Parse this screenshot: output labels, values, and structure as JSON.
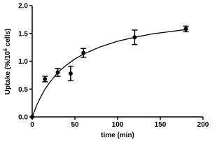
{
  "chart_data": {
    "type": "scatter",
    "xlabel": "time (min)",
    "ylabel_parts": [
      "Uptake (%/10",
      "6",
      " cells)"
    ],
    "xlim": [
      0,
      200
    ],
    "xticks": [
      0,
      50,
      100,
      150,
      200
    ],
    "ylim": [
      0,
      2.0
    ],
    "yticks": [
      {
        "value": 0,
        "label": "0.0"
      },
      {
        "value": 0.5,
        "label": "0.5"
      },
      {
        "value": 1.0,
        "label": "1.0"
      },
      {
        "value": 1.5,
        "label": "1.5"
      },
      {
        "value": 2.0,
        "label": "2.0"
      }
    ],
    "color": "#000000",
    "points": {
      "x": [
        0,
        15,
        30,
        45,
        60,
        120,
        180
      ],
      "values": [
        0,
        0.68,
        0.8,
        0.78,
        1.15,
        1.43,
        1.58
      ],
      "errors": [
        null,
        0.05,
        0.07,
        0.13,
        0.08,
        0.13,
        0.05
      ]
    },
    "fit": {
      "x": [
        0,
        5,
        10,
        15,
        20,
        30,
        40,
        50,
        60,
        80,
        100,
        120,
        140,
        160,
        180
      ],
      "values": [
        0,
        0.2,
        0.36,
        0.5,
        0.61,
        0.8,
        0.93,
        1.04,
        1.13,
        1.26,
        1.36,
        1.43,
        1.49,
        1.53,
        1.57
      ]
    }
  }
}
